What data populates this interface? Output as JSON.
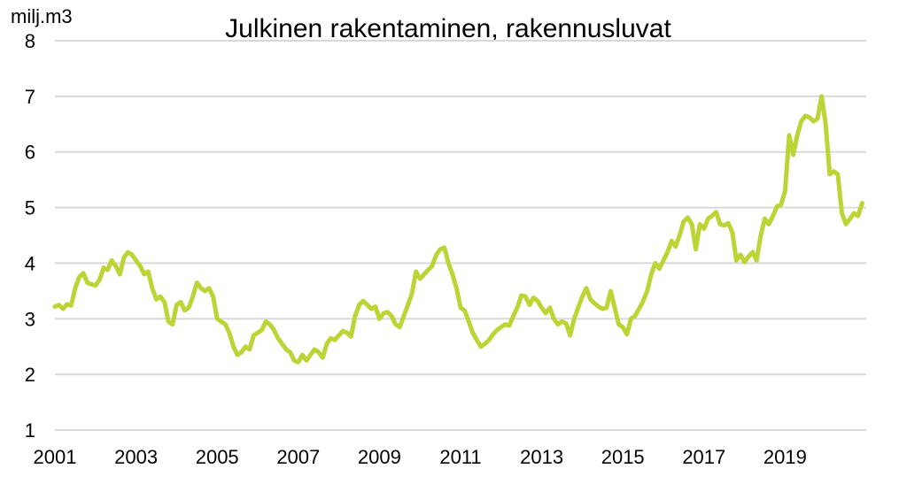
{
  "chart_data": {
    "type": "line",
    "title": "Julkinen rakentaminen, rakennusluvat",
    "ylabel": "milj.m3",
    "xlabel": "",
    "ylim": [
      1,
      8
    ],
    "yticks": [
      1,
      2,
      3,
      4,
      5,
      6,
      7,
      8
    ],
    "xticks": [
      "2001",
      "2003",
      "2005",
      "2007",
      "2009",
      "2011",
      "2013",
      "2015",
      "2017",
      "2019"
    ],
    "grid": "horizontal",
    "line_color": "#bcd436",
    "series": [
      {
        "x": [
          2001.0,
          2001.1,
          2001.2,
          2001.3,
          2001.4,
          2001.5,
          2001.6,
          2001.7,
          2001.8,
          2001.9,
          2002.0,
          2002.1,
          2002.2,
          2002.3,
          2002.4,
          2002.5,
          2002.6,
          2002.7,
          2002.8,
          2002.9,
          2003.0,
          2003.1,
          2003.2,
          2003.3,
          2003.4,
          2003.5,
          2003.6,
          2003.7,
          2003.8,
          2003.9,
          2004.0,
          2004.1,
          2004.2,
          2004.3,
          2004.4,
          2004.5,
          2004.6,
          2004.7,
          2004.8,
          2004.9,
          2005.0,
          2005.1,
          2005.2,
          2005.3,
          2005.4,
          2005.5,
          2005.6,
          2005.7,
          2005.8,
          2005.9,
          2006.0,
          2006.1,
          2006.2,
          2006.3,
          2006.4,
          2006.5,
          2006.6,
          2006.7,
          2006.8,
          2006.9,
          2007.0,
          2007.1,
          2007.2,
          2007.3,
          2007.4,
          2007.5,
          2007.6,
          2007.7,
          2007.8,
          2007.9,
          2008.0,
          2008.1,
          2008.2,
          2008.3,
          2008.4,
          2008.5,
          2008.6,
          2008.7,
          2008.8,
          2008.9,
          2009.0,
          2009.1,
          2009.2,
          2009.3,
          2009.4,
          2009.5,
          2009.6,
          2009.7,
          2009.8,
          2009.9,
          2010.0,
          2010.1,
          2010.2,
          2010.3,
          2010.4,
          2010.5,
          2010.6,
          2010.7,
          2010.8,
          2010.9,
          2011.0,
          2011.1,
          2011.2,
          2011.3,
          2011.4,
          2011.5,
          2011.6,
          2011.7,
          2011.8,
          2011.9,
          2012.0,
          2012.1,
          2012.2,
          2012.3,
          2012.4,
          2012.5,
          2012.6,
          2012.7,
          2012.8,
          2012.9,
          2013.0,
          2013.1,
          2013.2,
          2013.3,
          2013.4,
          2013.5,
          2013.6,
          2013.7,
          2013.8,
          2013.9,
          2014.0,
          2014.1,
          2014.2,
          2014.3,
          2014.4,
          2014.5,
          2014.6,
          2014.7,
          2014.8,
          2014.9,
          2015.0,
          2015.1,
          2015.2,
          2015.3,
          2015.4,
          2015.5,
          2015.6,
          2015.7,
          2015.8,
          2015.9,
          2016.0,
          2016.1,
          2016.2,
          2016.3,
          2016.4,
          2016.5,
          2016.6,
          2016.7,
          2016.8,
          2016.9,
          2017.0,
          2017.1,
          2017.2,
          2017.3,
          2017.4,
          2017.5,
          2017.6,
          2017.7,
          2017.8,
          2017.9,
          2018.0,
          2018.1,
          2018.2,
          2018.3,
          2018.4,
          2018.5,
          2018.6,
          2018.7,
          2018.8,
          2018.9,
          2019.0,
          2019.1,
          2019.2,
          2019.3,
          2019.4,
          2019.5,
          2019.6,
          2019.7,
          2019.8,
          2019.9,
          2020.0,
          2020.1,
          2020.2,
          2020.3,
          2020.4,
          2020.5,
          2020.6,
          2020.7,
          2020.8,
          2020.9
        ],
        "y": [
          3.22,
          3.25,
          3.18,
          3.26,
          3.24,
          3.55,
          3.75,
          3.82,
          3.65,
          3.62,
          3.6,
          3.7,
          3.92,
          3.88,
          4.05,
          3.95,
          3.8,
          4.1,
          4.2,
          4.15,
          4.05,
          3.95,
          3.8,
          3.85,
          3.55,
          3.35,
          3.4,
          3.3,
          2.95,
          2.9,
          3.25,
          3.3,
          3.15,
          3.2,
          3.4,
          3.65,
          3.55,
          3.5,
          3.55,
          3.4,
          3.0,
          2.95,
          2.9,
          2.75,
          2.5,
          2.35,
          2.4,
          2.5,
          2.45,
          2.7,
          2.75,
          2.8,
          2.95,
          2.9,
          2.8,
          2.65,
          2.55,
          2.45,
          2.4,
          2.25,
          2.22,
          2.35,
          2.25,
          2.35,
          2.45,
          2.4,
          2.3,
          2.55,
          2.65,
          2.62,
          2.7,
          2.78,
          2.75,
          2.68,
          3.05,
          3.25,
          3.32,
          3.25,
          3.18,
          3.22,
          3.0,
          3.1,
          3.12,
          3.05,
          2.9,
          2.85,
          3.05,
          3.25,
          3.45,
          3.85,
          3.72,
          3.8,
          3.88,
          3.95,
          4.15,
          4.25,
          4.28,
          4.0,
          3.8,
          3.55,
          3.2,
          3.15,
          2.95,
          2.75,
          2.62,
          2.5,
          2.55,
          2.62,
          2.72,
          2.8,
          2.85,
          2.9,
          2.88,
          3.05,
          3.2,
          3.42,
          3.4,
          3.25,
          3.38,
          3.32,
          3.2,
          3.1,
          3.2,
          3.0,
          2.9,
          2.95,
          2.92,
          2.7,
          3.0,
          3.2,
          3.4,
          3.55,
          3.35,
          3.28,
          3.22,
          3.18,
          3.2,
          3.5,
          3.2,
          2.9,
          2.85,
          2.72,
          3.0,
          3.05,
          3.18,
          3.32,
          3.5,
          3.8,
          4.0,
          3.9,
          4.05,
          4.2,
          4.4,
          4.3,
          4.5,
          4.75,
          4.82,
          4.7,
          4.25,
          4.7,
          4.62,
          4.8,
          4.85,
          4.92,
          4.7,
          4.68,
          4.72,
          4.55,
          4.05,
          4.15,
          4.02,
          4.12,
          4.2,
          4.05,
          4.5,
          4.8,
          4.7,
          4.85,
          5.02,
          5.05,
          5.3,
          6.3,
          5.95,
          6.3,
          6.55,
          6.65,
          6.62,
          6.55,
          6.6,
          7.0,
          6.5,
          5.6,
          5.65,
          5.6,
          4.9,
          4.7,
          4.8,
          4.9,
          4.85,
          5.08
        ]
      }
    ]
  }
}
